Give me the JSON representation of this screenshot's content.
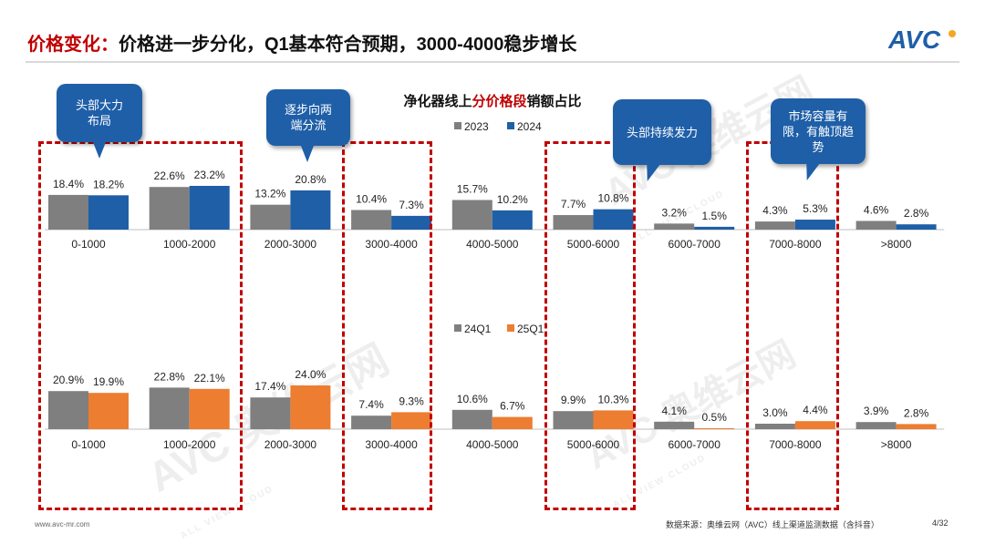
{
  "header": {
    "title_lead": "价格变化：",
    "title_rest": "价格进一步分化，Q1基本符合预期，3000-4000稳步增长",
    "logo_text": "AVC"
  },
  "chart_title": {
    "prefix": "净化器线上",
    "highlight": "分价格段",
    "suffix": "销额占比"
  },
  "callouts": {
    "c1": "头部大力布局",
    "c2": "逐步向两端分流",
    "c3": "头部持续发力",
    "c4": "市场容量有限，有触顶趋势"
  },
  "watermark": {
    "brand": "AVC 奥维云网",
    "sub": "ALL VIEW CLOUD"
  },
  "footer": {
    "website": "www.avc-mr.com",
    "source": "数据来源：奥维云网（AVC）线上渠道监测数据（含抖音）",
    "page": "4/32"
  },
  "colors": {
    "gray": "#7f7f7f",
    "blue": "#1f5fa8",
    "orange": "#ed7d31"
  },
  "chart_data": [
    {
      "type": "bar",
      "title": "净化器线上分价格段销额占比",
      "categories": [
        "0-1000",
        "1000-2000",
        "2000-3000",
        "3000-4000",
        "4000-5000",
        "5000-6000",
        "6000-7000",
        "7000-8000",
        ">8000"
      ],
      "series": [
        {
          "name": "2023",
          "values": [
            18.4,
            22.6,
            13.2,
            10.4,
            15.7,
            7.7,
            3.2,
            4.3,
            4.6
          ],
          "labels": [
            "18.4%",
            "22.6%",
            "13.2%",
            "10.4%",
            "15.7%",
            "7.7%",
            "3.2%",
            "4.3%",
            "4.6%"
          ]
        },
        {
          "name": "2024",
          "values": [
            18.2,
            23.2,
            20.8,
            7.3,
            10.2,
            10.8,
            1.5,
            5.3,
            2.8
          ],
          "labels": [
            "18.2%",
            "23.2%",
            "20.8%",
            "7.3%",
            "10.2%",
            "10.8%",
            "1.5%",
            "5.3%",
            "2.8%"
          ]
        }
      ],
      "ylim": [
        0,
        25
      ]
    },
    {
      "type": "bar",
      "categories": [
        "0-1000",
        "1000-2000",
        "2000-3000",
        "3000-4000",
        "4000-5000",
        "5000-6000",
        "6000-7000",
        "7000-8000",
        ">8000"
      ],
      "series": [
        {
          "name": "24Q1",
          "values": [
            20.9,
            22.8,
            17.4,
            7.4,
            10.6,
            9.9,
            4.1,
            3.0,
            3.9
          ],
          "labels": [
            "20.9%",
            "22.8%",
            "17.4%",
            "7.4%",
            "10.6%",
            "9.9%",
            "4.1%",
            "3.0%",
            "3.9%"
          ]
        },
        {
          "name": "25Q1",
          "values": [
            19.9,
            22.1,
            24.0,
            9.3,
            6.7,
            10.3,
            0.5,
            4.4,
            2.8
          ],
          "labels": [
            "19.9%",
            "22.1%",
            "24.0%",
            "9.3%",
            "6.7%",
            "10.3%",
            "0.5%",
            "4.4%",
            "2.8%"
          ]
        }
      ],
      "ylim": [
        0,
        25
      ]
    }
  ]
}
